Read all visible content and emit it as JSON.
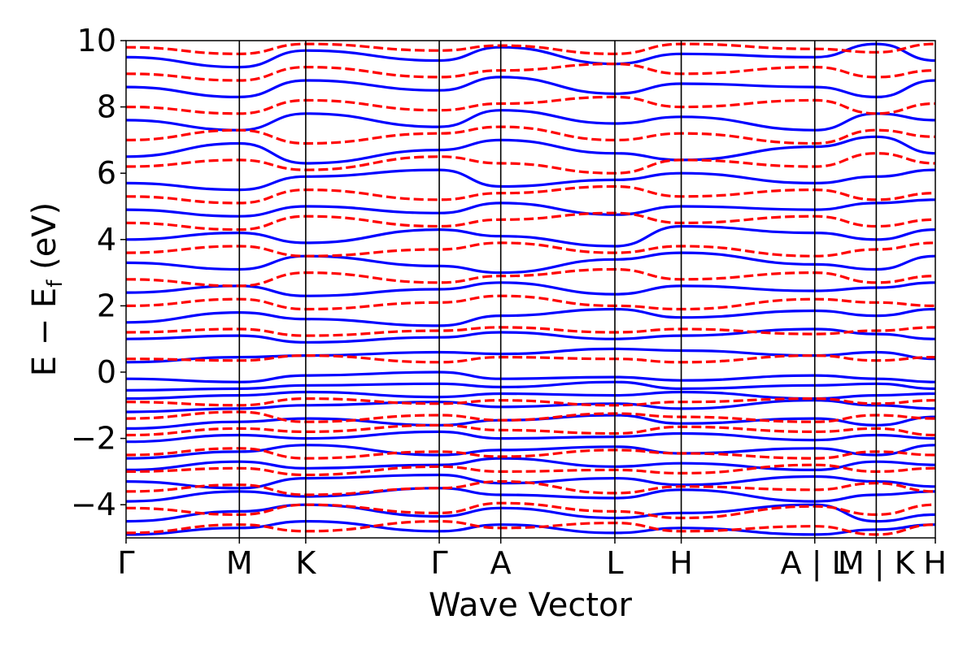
{
  "chart_data": {
    "type": "line",
    "title": "",
    "xlabel": "Wave Vector",
    "ylabel_parts": {
      "main": "E − E",
      "sub": "f",
      "unit": " (eV)"
    },
    "ylim": [
      -5,
      10
    ],
    "yticks": [
      10,
      8,
      6,
      4,
      2,
      0,
      -2,
      -4
    ],
    "ytick_labels": [
      "10",
      "8",
      "6",
      "4",
      "2",
      "0",
      "−2",
      "−4"
    ],
    "grid": false,
    "legend": null,
    "kpath": [
      {
        "label": "Γ",
        "x": 0.0
      },
      {
        "label": "M",
        "x": 0.14
      },
      {
        "label": "K",
        "x": 0.222
      },
      {
        "label": "Γ",
        "x": 0.387
      },
      {
        "label": "A",
        "x": 0.463
      },
      {
        "label": "L",
        "x": 0.604
      },
      {
        "label": "H",
        "x": 0.686
      },
      {
        "label": "A | L",
        "x": 0.851
      },
      {
        "label": "M | K",
        "x": 0.927
      },
      {
        "label": "H",
        "x": 1.0
      }
    ],
    "x_range": [
      0,
      1
    ],
    "segment_breaks": [
      0.851,
      0.927
    ],
    "series": [
      {
        "style": "solid",
        "color": "#0000ff",
        "bands": [
          [
            -4.9,
            -4.7,
            -4.5,
            -4.8,
            -4.6,
            -4.85,
            -4.7,
            -4.9,
            -4.75,
            -4.6
          ],
          [
            -4.5,
            -4.2,
            -4.0,
            -4.35,
            -4.1,
            -4.4,
            -4.25,
            -4.0,
            -4.5,
            -4.3
          ],
          [
            -3.9,
            -3.6,
            -3.75,
            -3.5,
            -3.7,
            -3.8,
            -3.55,
            -3.9,
            -3.7,
            -3.6
          ],
          [
            -3.3,
            -3.5,
            -3.2,
            -3.1,
            -3.35,
            -3.2,
            -3.4,
            -3.15,
            -3.3,
            -3.45
          ],
          [
            -2.95,
            -2.7,
            -2.9,
            -2.8,
            -2.6,
            -2.85,
            -2.75,
            -2.95,
            -2.7,
            -2.8
          ],
          [
            -2.6,
            -2.4,
            -2.2,
            -2.5,
            -2.35,
            -2.25,
            -2.45,
            -2.3,
            -2.5,
            -2.2
          ],
          [
            -2.1,
            -1.9,
            -2.0,
            -1.8,
            -2.0,
            -1.95,
            -1.85,
            -2.05,
            -1.9,
            -2.0
          ],
          [
            -1.7,
            -1.5,
            -1.4,
            -1.6,
            -1.45,
            -1.3,
            -1.55,
            -1.4,
            -1.6,
            -1.35
          ],
          [
            -1.2,
            -1.1,
            -1.0,
            -0.9,
            -1.05,
            -0.95,
            -1.1,
            -0.85,
            -1.0,
            -1.1
          ],
          [
            -0.8,
            -0.7,
            -0.6,
            -0.75,
            -0.65,
            -0.7,
            -0.6,
            -0.8,
            -0.7,
            -0.65
          ],
          [
            -0.55,
            -0.5,
            -0.4,
            -0.35,
            -0.45,
            -0.3,
            -0.5,
            -0.4,
            -0.35,
            -0.5
          ],
          [
            -0.2,
            -0.3,
            -0.1,
            0.0,
            -0.2,
            -0.15,
            -0.25,
            -0.1,
            -0.2,
            -0.3
          ],
          [
            0.3,
            0.45,
            0.5,
            0.6,
            0.55,
            0.7,
            0.65,
            0.5,
            0.6,
            0.4
          ],
          [
            1.0,
            1.1,
            0.9,
            1.05,
            1.2,
            1.0,
            1.1,
            1.3,
            1.15,
            1.0
          ],
          [
            1.5,
            1.8,
            1.6,
            1.4,
            1.7,
            1.9,
            1.65,
            1.85,
            1.7,
            1.9
          ],
          [
            2.4,
            2.6,
            2.3,
            2.5,
            2.7,
            2.35,
            2.6,
            2.45,
            2.55,
            2.7
          ],
          [
            3.3,
            3.1,
            3.5,
            3.2,
            3.0,
            3.4,
            3.6,
            3.25,
            3.1,
            3.5
          ],
          [
            4.0,
            4.2,
            3.9,
            4.3,
            4.1,
            3.8,
            4.4,
            4.2,
            4.0,
            4.3
          ],
          [
            4.9,
            4.7,
            5.0,
            4.8,
            5.1,
            4.75,
            5.0,
            4.9,
            5.1,
            5.2
          ],
          [
            5.7,
            5.5,
            5.9,
            6.1,
            5.6,
            5.8,
            6.0,
            5.7,
            5.9,
            6.1
          ],
          [
            6.5,
            6.9,
            6.3,
            6.7,
            7.0,
            6.6,
            6.4,
            6.8,
            7.1,
            6.6
          ],
          [
            7.6,
            7.3,
            7.8,
            7.4,
            7.9,
            7.5,
            7.7,
            7.3,
            7.8,
            7.6
          ],
          [
            8.6,
            8.3,
            8.8,
            8.5,
            8.9,
            8.4,
            8.7,
            8.6,
            8.3,
            8.8
          ],
          [
            9.5,
            9.2,
            9.7,
            9.4,
            9.8,
            9.3,
            9.6,
            9.5,
            9.9,
            9.4
          ]
        ]
      },
      {
        "style": "dashed",
        "color": "#ff0000",
        "bands": [
          [
            -4.85,
            -4.6,
            -4.8,
            -4.5,
            -4.7,
            -4.55,
            -4.8,
            -4.65,
            -4.9,
            -4.6
          ],
          [
            -4.1,
            -4.3,
            -4.0,
            -4.25,
            -3.95,
            -4.2,
            -4.4,
            -4.05,
            -4.3,
            -4.0
          ],
          [
            -3.6,
            -3.4,
            -3.7,
            -3.5,
            -3.3,
            -3.65,
            -3.45,
            -3.55,
            -3.35,
            -3.6
          ],
          [
            -3.0,
            -2.9,
            -3.1,
            -2.85,
            -3.0,
            -2.95,
            -3.05,
            -2.8,
            -3.0,
            -2.9
          ],
          [
            -2.5,
            -2.3,
            -2.6,
            -2.4,
            -2.55,
            -2.35,
            -2.45,
            -2.6,
            -2.4,
            -2.5
          ],
          [
            -1.9,
            -1.7,
            -1.8,
            -1.6,
            -1.75,
            -1.85,
            -1.65,
            -1.8,
            -1.7,
            -1.9
          ],
          [
            -1.4,
            -1.2,
            -1.5,
            -1.3,
            -1.45,
            -1.25,
            -1.35,
            -1.5,
            -1.3,
            -1.4
          ],
          [
            -0.9,
            -1.0,
            -0.8,
            -0.95,
            -0.85,
            -1.0,
            -0.9,
            -0.8,
            -0.95,
            -0.85
          ],
          [
            0.4,
            0.35,
            0.5,
            0.3,
            0.45,
            0.4,
            0.3,
            0.5,
            0.35,
            0.45
          ],
          [
            1.2,
            1.3,
            1.1,
            1.25,
            1.35,
            1.2,
            1.3,
            1.15,
            1.25,
            1.35
          ],
          [
            2.0,
            2.2,
            1.9,
            2.1,
            2.3,
            2.0,
            1.9,
            2.2,
            2.1,
            2.0
          ],
          [
            2.8,
            2.6,
            3.0,
            2.7,
            2.9,
            3.1,
            2.8,
            3.0,
            2.7,
            2.9
          ],
          [
            3.6,
            3.8,
            3.5,
            3.7,
            3.9,
            3.6,
            3.8,
            3.5,
            3.7,
            3.9
          ],
          [
            4.5,
            4.3,
            4.7,
            4.4,
            4.6,
            4.8,
            4.5,
            4.7,
            4.4,
            4.6
          ],
          [
            5.3,
            5.1,
            5.5,
            5.2,
            5.4,
            5.6,
            5.3,
            5.5,
            5.2,
            5.4
          ],
          [
            6.2,
            6.4,
            6.1,
            6.5,
            6.3,
            6.0,
            6.4,
            6.2,
            6.6,
            6.3
          ],
          [
            7.0,
            7.3,
            6.9,
            7.2,
            7.4,
            7.0,
            7.2,
            6.9,
            7.3,
            7.1
          ],
          [
            8.0,
            7.8,
            8.2,
            7.9,
            8.1,
            8.3,
            8.0,
            8.2,
            7.8,
            8.1
          ],
          [
            9.0,
            8.8,
            9.2,
            8.9,
            9.1,
            9.3,
            9.0,
            9.2,
            8.9,
            9.1
          ],
          [
            9.8,
            9.6,
            9.9,
            9.7,
            9.85,
            9.6,
            9.9,
            9.75,
            9.65,
            9.9
          ]
        ]
      }
    ]
  }
}
